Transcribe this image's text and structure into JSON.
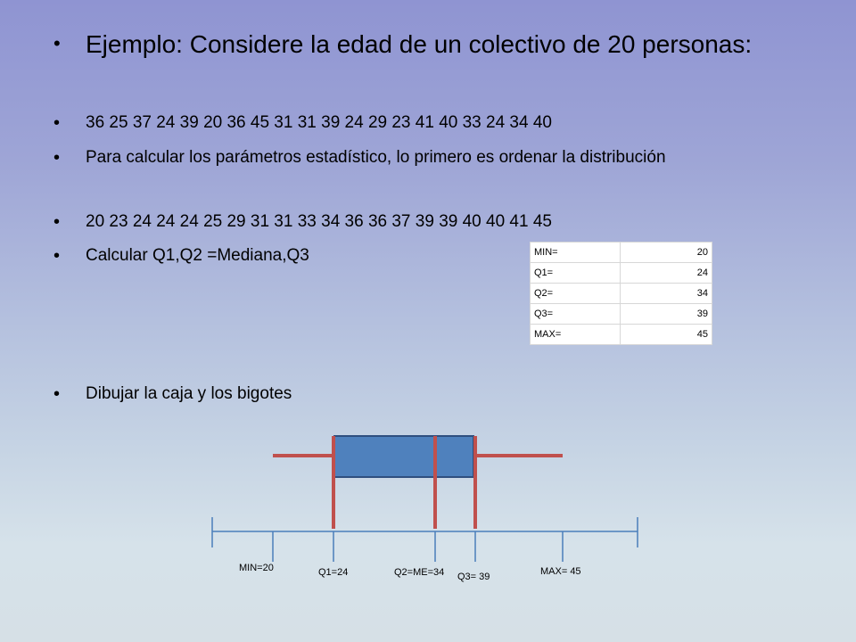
{
  "slide": {
    "bullets": [
      "Ejemplo: Considere la edad de un colectivo de 20 personas:",
      "36 25 37 24 39 20 36 45 31 31 39 24 29 23 41 40 33 24 34 40",
      "Para calcular los parámetros estadístico, lo primero es ordenar la distribución",
      "20 23 24 24 24 25 29 31 31 33 34 36 36 37 39 39 40 40 41 45",
      "Calcular Q1,Q2 =Mediana,Q3",
      "Dibujar la caja y los bigotes"
    ],
    "bullet_symbol": "•"
  },
  "stats_table": [
    {
      "label": "MIN=",
      "value": "20"
    },
    {
      "label": "Q1=",
      "value": "24"
    },
    {
      "label": "Q2=",
      "value": "34"
    },
    {
      "label": "Q3=",
      "value": "39"
    },
    {
      "label": "MAX=",
      "value": "45"
    }
  ],
  "boxplot": {
    "min": 20,
    "q1": 24,
    "median": 34,
    "q3": 39,
    "max": 45,
    "axis_labels": {
      "min": "MIN=20",
      "q1": "Q1=24",
      "median": "Q2=ME=34",
      "q3": "Q3= 39",
      "max": "MAX= 45"
    },
    "colors": {
      "box_fill": "#4f81bd",
      "box_stroke": "#2f4f7f",
      "whisker": "#c0504d",
      "axis": "#4a7ebb"
    }
  }
}
